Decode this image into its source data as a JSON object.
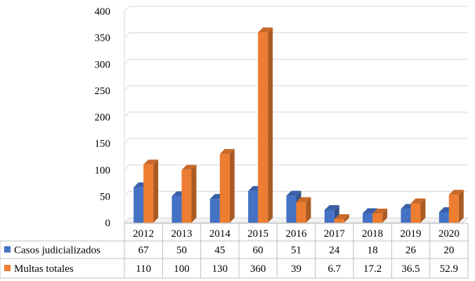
{
  "chart_data": {
    "type": "bar",
    "title": "",
    "xlabel": "",
    "ylabel": "",
    "ylim": [
      0,
      400
    ],
    "yticks": [
      0,
      50,
      100,
      150,
      200,
      250,
      300,
      350,
      400
    ],
    "grid": true,
    "legend_placement": "left of data table",
    "categories": [
      "2012",
      "2013",
      "2014",
      "2015",
      "2016",
      "2017",
      "2018",
      "2019",
      "2020"
    ],
    "series": [
      {
        "name": "Casos judicializados",
        "color": "#4472c4",
        "values": [
          67,
          50,
          45,
          60,
          51,
          24,
          18,
          26,
          20
        ],
        "labels": [
          "67",
          "50",
          "45",
          "60",
          "51",
          "24",
          "18",
          "26",
          "20"
        ]
      },
      {
        "name": "Multas totales",
        "color": "#ed7d31",
        "values": [
          110,
          100,
          130,
          360,
          39,
          6.7,
          17.2,
          36.5,
          52.9
        ],
        "labels": [
          "110",
          "100",
          "130",
          "360",
          "39",
          "6.7",
          "17.2",
          "36.5",
          "52.9"
        ]
      }
    ]
  }
}
